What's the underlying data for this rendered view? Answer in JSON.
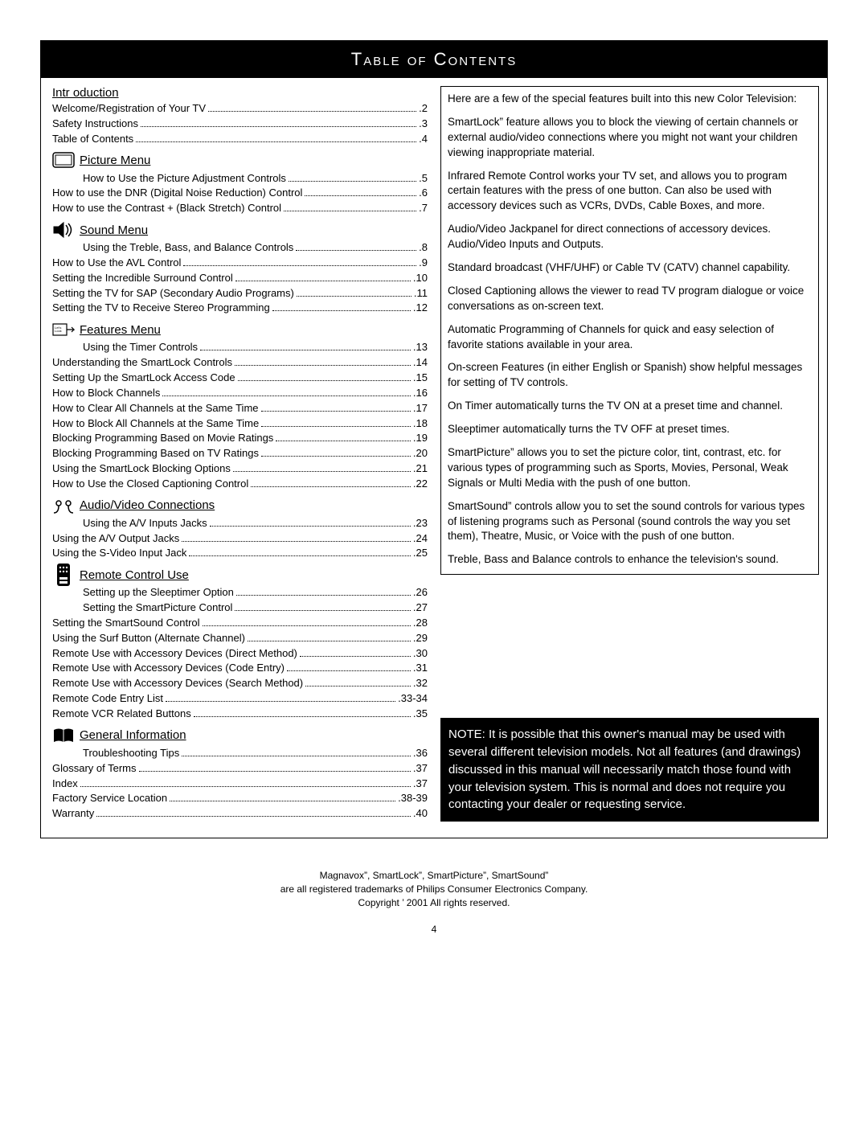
{
  "title": "Table of Contents",
  "pageNumber": "4",
  "sections": [
    {
      "heading": "Intr oduction",
      "icon": null,
      "topMargin": true,
      "entries": [
        {
          "title": "Welcome/Registration of Your TV",
          "page": ".2",
          "indent": false
        },
        {
          "title": "Safety Instructions",
          "page": ".3",
          "indent": false
        },
        {
          "title": "Table of Contents",
          "page": ".4",
          "indent": false
        }
      ]
    },
    {
      "heading": "Picture Menu",
      "icon": "tv",
      "entries": [
        {
          "title": "How to Use the Picture Adjustment Controls",
          "page": ".5",
          "indent": true
        },
        {
          "title": "How to use the DNR (Digital Noise Reduction) Control",
          "page": ".6",
          "indent": false
        },
        {
          "title": "How to use the Contrast + (Black Stretch) Control",
          "page": ".7",
          "indent": false
        }
      ]
    },
    {
      "heading": "Sound Menu",
      "icon": "speaker",
      "entries": [
        {
          "title": "Using the Treble, Bass, and Balance Controls",
          "page": ".8",
          "indent": true
        },
        {
          "title": "How to Use the AVL Control",
          "page": ".9",
          "indent": false
        },
        {
          "title": "Setting the Incredible Surround Control",
          "page": ".10",
          "indent": false
        },
        {
          "title": "Setting the TV for SAP (Secondary Audio Programs)",
          "page": ".11",
          "indent": false
        },
        {
          "title": "Setting the TV to Receive Stereo Programming",
          "page": ".12",
          "indent": false
        }
      ]
    },
    {
      "heading": "Features Menu",
      "icon": "look",
      "entries": [
        {
          "title": "Using the Timer Controls",
          "page": ".13",
          "indent": true
        },
        {
          "title": "Understanding the SmartLock Controls",
          "page": ".14",
          "indent": false
        },
        {
          "title": "Setting Up the SmartLock Access Code",
          "page": ".15",
          "indent": false
        },
        {
          "title": "How to Block Channels",
          "page": ".16",
          "indent": false
        },
        {
          "title": "How to Clear All Channels at the Same Time",
          "page": ".17",
          "indent": false
        },
        {
          "title": "How to Block All Channels at the Same Time",
          "page": ".18",
          "indent": false
        },
        {
          "title": "Blocking Programming Based on Movie Ratings",
          "page": ".19",
          "indent": false
        },
        {
          "title": "Blocking Programming Based on TV Ratings",
          "page": ".20",
          "indent": false
        },
        {
          "title": "Using the SmartLock Blocking Options",
          "page": ".21",
          "indent": false
        },
        {
          "title": "How to Use the Closed Captioning Control",
          "page": ".22",
          "indent": false
        }
      ]
    },
    {
      "heading": "Audio/Video Connections",
      "icon": "cable",
      "entries": [
        {
          "title": "Using the A/V Inputs Jacks",
          "page": ".23",
          "indent": true
        },
        {
          "title": "Using the A/V Output Jacks",
          "page": ".24",
          "indent": false
        },
        {
          "title": "Using the S-Video Input Jack",
          "page": ".25",
          "indent": false
        }
      ]
    },
    {
      "heading": "Remote Control Use",
      "icon": "remote",
      "entries": [
        {
          "title": "Setting up the Sleeptimer Option",
          "page": ".26",
          "indent": true
        },
        {
          "title": "Setting the SmartPicture Control",
          "page": ".27",
          "indent": true
        },
        {
          "title": "Setting the SmartSound Control",
          "page": ".28",
          "indent": false
        },
        {
          "title": "Using the Surf Button (Alternate Channel)",
          "page": ".29",
          "indent": false
        },
        {
          "title": "Remote Use with Accessory Devices (Direct Method)",
          "page": ".30",
          "indent": false
        },
        {
          "title": "Remote Use with Accessory Devices (Code Entry)",
          "page": ".31",
          "indent": false
        },
        {
          "title": "Remote Use with Accessory Devices (Search Method)",
          "page": ".32",
          "indent": false
        },
        {
          "title": "Remote Code Entry List",
          "page": ".33-34",
          "indent": false
        },
        {
          "title": "Remote VCR Related Buttons",
          "page": ".35",
          "indent": false
        }
      ]
    },
    {
      "heading": "General Information",
      "icon": "book",
      "entries": [
        {
          "title": "Troubleshooting Tips",
          "page": ".36",
          "indent": true
        },
        {
          "title": "Glossary of Terms",
          "page": ".37",
          "indent": false
        },
        {
          "title": "Index",
          "page": ".37",
          "indent": false
        },
        {
          "title": "Factory Service Location",
          "page": ".38-39",
          "indent": false
        },
        {
          "title": "Warranty",
          "page": ".40",
          "indent": false
        }
      ]
    }
  ],
  "featuresIntro": "Here are a few of the special features built into this new Color Television:",
  "features": [
    "SmartLock” feature allows you to block the viewing of certain channels or external audio/video connections where you might not want your children viewing inappropriate material.",
    "Infrared Remote Control works your TV set, and allows you to program certain features with the press of one button. Can also be used with accessory devices such as VCRs, DVDs, Cable Boxes, and more.",
    "Audio/Video Jackpanel for direct connections of accessory devices. Audio/Video Inputs and Outputs.",
    "Standard broadcast (VHF/UHF) or Cable TV (CATV) channel capability.",
    "Closed Captioning allows the viewer to read TV program dialogue or voice conversations as on-screen text.",
    "Automatic Programming of Channels for quick and easy selection of favorite stations available in your area.",
    "On-screen Features (in either English or Spanish) show helpful messages for setting of TV controls.",
    "On Timer automatically turns the TV ON at a preset time and channel.",
    "Sleeptimer automatically turns the TV OFF at preset times.",
    "SmartPicture” allows you to set the picture color, tint, contrast, etc. for various types of programming such as Sports, Movies, Personal, Weak Signals or Multi Media with the push of one button.",
    "SmartSound” controls allow you to set the sound controls for various types of listening programs such as Personal (sound controls the way you set them), Theatre, Music, or Voice with the push of one button.",
    "Treble, Bass and Balance controls to enhance the television's sound."
  ],
  "note": "NOTE: It is possible that this owner's manual may be used with several different television models. Not all features (and drawings) discussed in this manual will necessarily match those found with your television system. This is normal and does not require you contacting your dealer or requesting service.",
  "trademark1": "Magnavox”, SmartLock”, SmartPicture”, SmartSound”",
  "trademark2": "are all registered trademarks of Philips Consumer Electronics Company.",
  "trademark3": "Copyright ’ 2001  All rights reserved."
}
